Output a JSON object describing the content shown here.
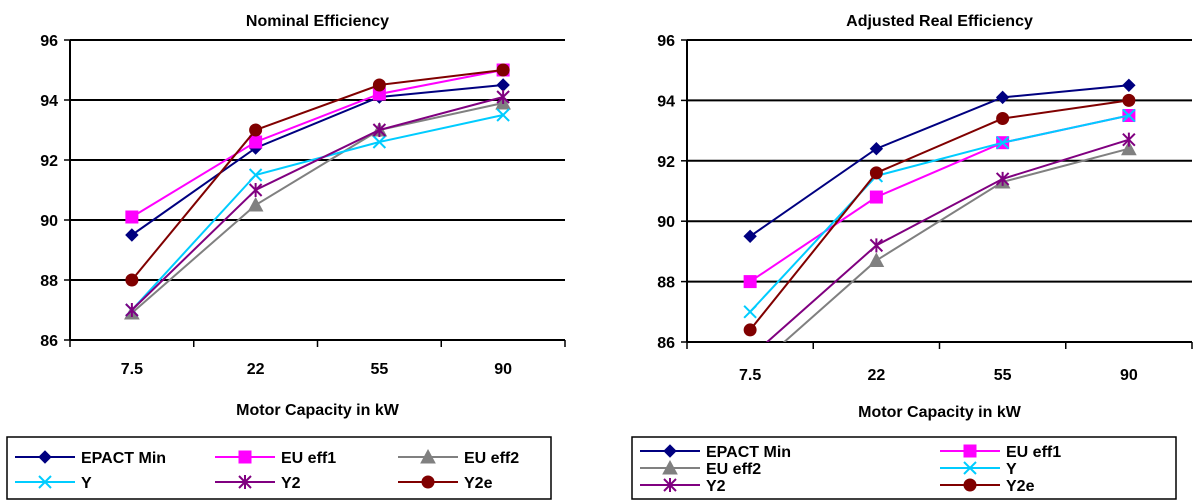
{
  "chart_data": [
    {
      "type": "line",
      "title": "Nominal Efficiency",
      "xlabel": "Motor Capacity in kW",
      "ylabel": "",
      "categories": [
        "7.5",
        "22",
        "55",
        "90"
      ],
      "ylim": [
        86,
        96
      ],
      "yticks": [
        "86",
        "88",
        "90",
        "92",
        "94",
        "96"
      ],
      "grid": "horizontal",
      "legend_position": "bottom",
      "series": [
        {
          "name": "EPACT Min",
          "color": "#000080",
          "marker": "diamond",
          "values": [
            89.5,
            92.4,
            94.1,
            94.5
          ]
        },
        {
          "name": "EU eff1",
          "color": "#ff00ff",
          "marker": "square",
          "values": [
            90.1,
            92.6,
            94.2,
            95.0
          ]
        },
        {
          "name": "EU eff2",
          "color": "#808080",
          "marker": "triangle",
          "values": [
            86.9,
            90.5,
            93.0,
            93.9
          ]
        },
        {
          "name": "Y",
          "color": "#00ccff",
          "marker": "x",
          "values": [
            87.0,
            91.5,
            92.6,
            93.5
          ]
        },
        {
          "name": "Y2",
          "color": "#800080",
          "marker": "star",
          "values": [
            87.0,
            91.0,
            93.0,
            94.1
          ]
        },
        {
          "name": "Y2e",
          "color": "#800000",
          "marker": "circle",
          "values": [
            88.0,
            93.0,
            94.5,
            95.0
          ]
        }
      ]
    },
    {
      "type": "line",
      "title": "Adjusted Real Efficiency",
      "xlabel": "Motor Capacity in kW",
      "ylabel": "",
      "categories": [
        "7.5",
        "22",
        "55",
        "90"
      ],
      "ylim": [
        86,
        96
      ],
      "yticks": [
        "86",
        "88",
        "90",
        "92",
        "94",
        "96"
      ],
      "grid": "horizontal",
      "legend_position": "bottom",
      "series": [
        {
          "name": "EPACT Min",
          "color": "#000080",
          "marker": "diamond",
          "values": [
            89.5,
            92.4,
            94.1,
            94.5
          ]
        },
        {
          "name": "EU eff1",
          "color": "#ff00ff",
          "marker": "square",
          "values": [
            88.0,
            90.8,
            92.6,
            93.5
          ]
        },
        {
          "name": "EU eff2",
          "color": "#808080",
          "marker": "triangle",
          "values": [
            85.0,
            88.7,
            91.3,
            92.4
          ]
        },
        {
          "name": "Y",
          "color": "#00ccff",
          "marker": "x",
          "values": [
            87.0,
            91.5,
            92.6,
            93.5
          ]
        },
        {
          "name": "Y2",
          "color": "#800080",
          "marker": "star",
          "values": [
            85.5,
            89.2,
            91.4,
            92.7
          ]
        },
        {
          "name": "Y2e",
          "color": "#800000",
          "marker": "circle",
          "values": [
            86.4,
            91.6,
            93.4,
            94.0
          ]
        }
      ]
    }
  ]
}
